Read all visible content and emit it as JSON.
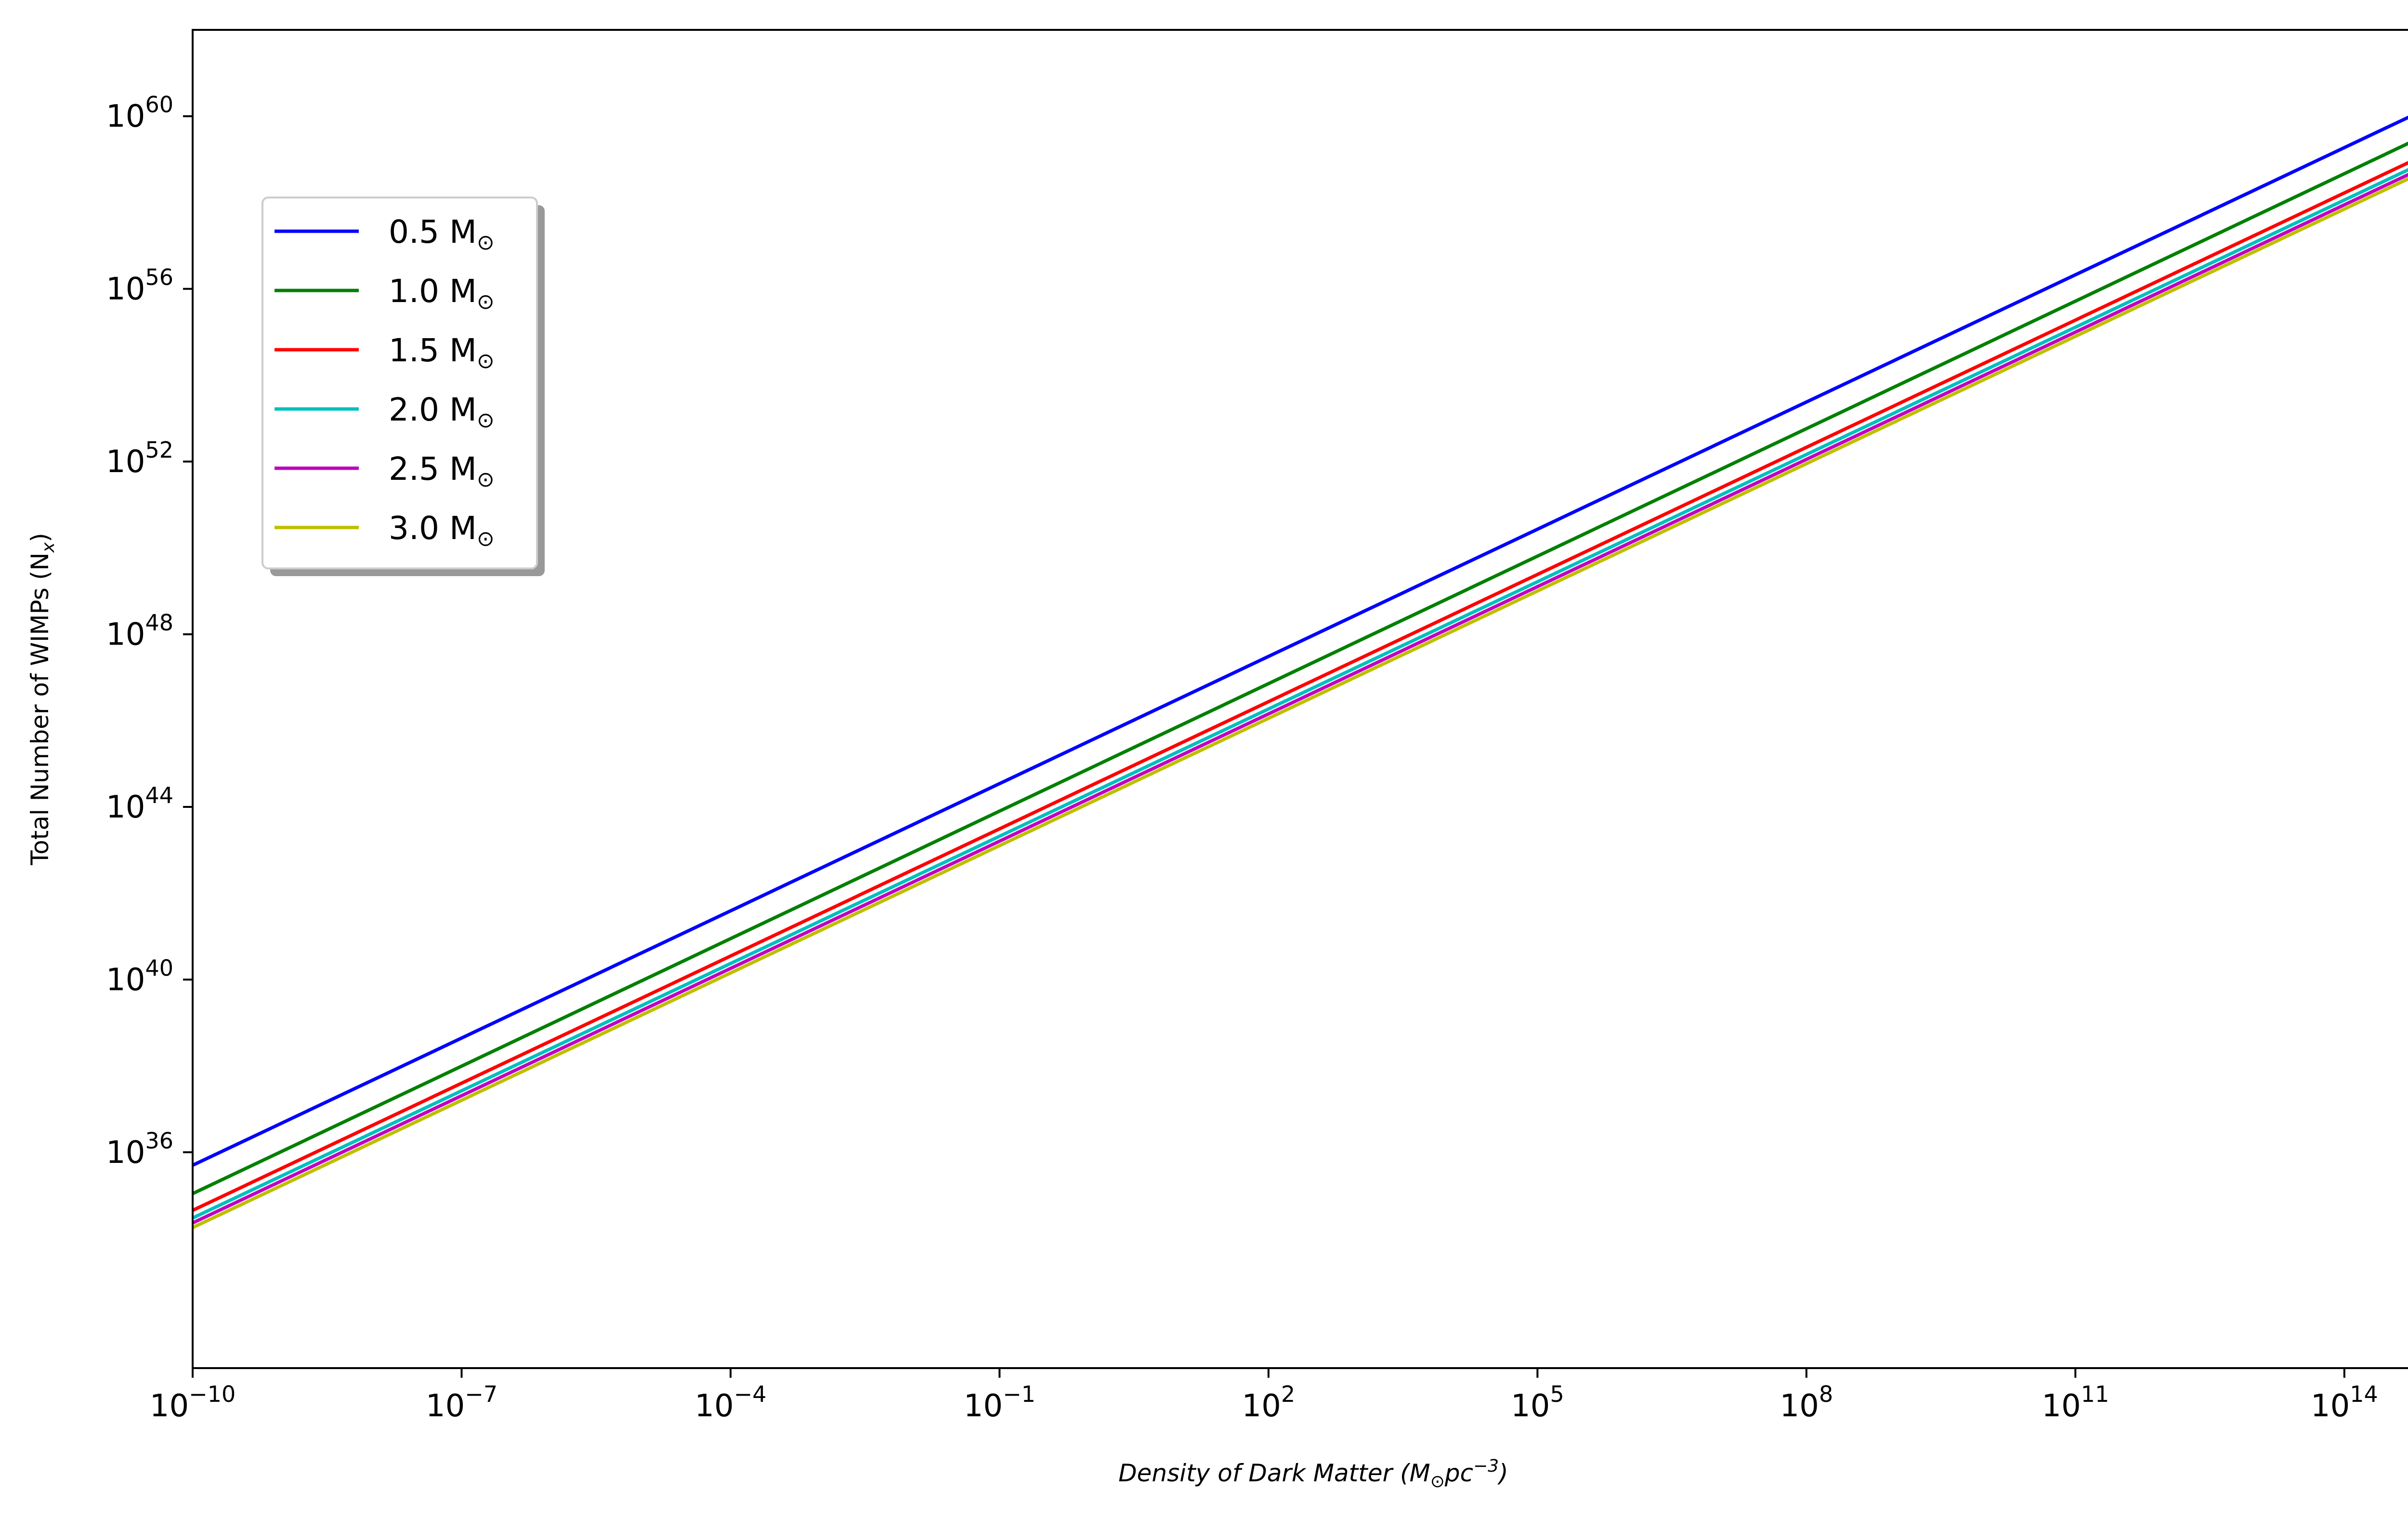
{
  "chart_data": {
    "type": "line",
    "x_scale": "log",
    "y_scale": "log",
    "xlim": [
      1e-10,
      1000000000000000.0
    ],
    "ylim": [
      1e+31,
      1e+62
    ],
    "x_ticks": [
      {
        "base": "10",
        "exp": "−10",
        "value": 1e-10
      },
      {
        "base": "10",
        "exp": "−7",
        "value": 1e-07
      },
      {
        "base": "10",
        "exp": "−4",
        "value": 0.0001
      },
      {
        "base": "10",
        "exp": "−1",
        "value": 0.1
      },
      {
        "base": "10",
        "exp": "2",
        "value": 100.0
      },
      {
        "base": "10",
        "exp": "5",
        "value": 100000.0
      },
      {
        "base": "10",
        "exp": "8",
        "value": 100000000.0
      },
      {
        "base": "10",
        "exp": "11",
        "value": 100000000000.0
      },
      {
        "base": "10",
        "exp": "14",
        "value": 100000000000000.0
      }
    ],
    "y_ticks": [
      {
        "base": "10",
        "exp": "36",
        "value": 1e+36
      },
      {
        "base": "10",
        "exp": "40",
        "value": 1e+40
      },
      {
        "base": "10",
        "exp": "44",
        "value": 1e+44
      },
      {
        "base": "10",
        "exp": "48",
        "value": 1e+48
      },
      {
        "base": "10",
        "exp": "52",
        "value": 1e+52
      },
      {
        "base": "10",
        "exp": "56",
        "value": 1e+56
      },
      {
        "base": "10",
        "exp": "60",
        "value": 1e+60
      }
    ],
    "xlabel": {
      "main": "Density of Dark Matter (M",
      "sub": "⊙",
      "mid": "pc",
      "sup": "−3",
      "end": ")"
    },
    "ylabel": {
      "main": "Total Number of WIMPs (N",
      "sub": "x",
      "end": ")"
    },
    "legend_position": "upper-left",
    "grid": false,
    "series": [
      {
        "name": "0.5 M",
        "sub": "⊙",
        "color": "#0000ff",
        "x": [
          1e-10,
          1000000000000000.0
        ],
        "y": [
          5e+35,
          1.8e+60
        ]
      },
      {
        "name": "1.0 M",
        "sub": "⊙",
        "color": "#008000",
        "x": [
          1e-10,
          1000000000000000.0
        ],
        "y": [
          1.1e+35,
          4.5e+59
        ]
      },
      {
        "name": "1.5 M",
        "sub": "⊙",
        "color": "#ff0000",
        "x": [
          1e-10,
          1000000000000000.0
        ],
        "y": [
          4.5e+34,
          1.6e+59
        ]
      },
      {
        "name": "2.0 M",
        "sub": "⊙",
        "color": "#00bfbf",
        "x": [
          1e-10,
          1000000000000000.0
        ],
        "y": [
          3e+34,
          1.1e+59
        ]
      },
      {
        "name": "2.5 M",
        "sub": "⊙",
        "color": "#bf00bf",
        "x": [
          1e-10,
          1000000000000000.0
        ],
        "y": [
          2.3e+34,
          8.5e+58
        ]
      },
      {
        "name": "3.0 M",
        "sub": "⊙",
        "color": "#bfbf00",
        "x": [
          1e-10,
          1000000000000000.0
        ],
        "y": [
          1.8e+34,
          6.8e+58
        ]
      }
    ]
  }
}
